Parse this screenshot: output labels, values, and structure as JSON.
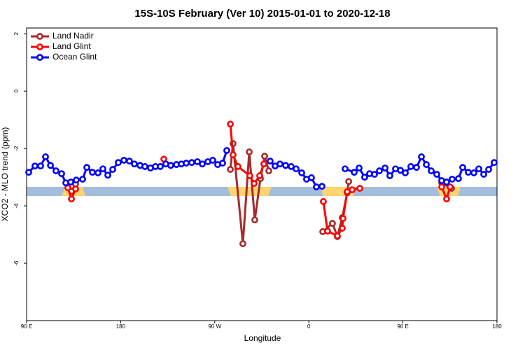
{
  "chart_data": {
    "type": "line",
    "title": "15S-10S February (Ver 10)   2015-01-01 to 2020-12-18",
    "xlabel": "Longitude",
    "ylabel": "XCO2 - MLO trend (ppm)",
    "xlim": [
      90,
      540
    ],
    "ylim": [
      -8,
      2.2
    ],
    "xticks": [
      {
        "value": 90,
        "label": "90 E"
      },
      180,
      {
        "value": 270,
        "label": "90 W"
      },
      {
        "value": 360,
        "label": "0"
      },
      {
        "value": 450,
        "label": "90 E"
      },
      {
        "value": 540,
        "label": "180"
      }
    ],
    "yticks": [
      -6,
      -4,
      -2,
      0,
      2
    ],
    "legend": "top-left",
    "series": [
      {
        "name": "Land Nadir",
        "color": "#a52a2a",
        "x": [
          129.5,
          132.9,
          136.9,
          null,
          284.9,
          287.5,
          296.9,
          303.0,
          308.3,
          313.7,
          317.7,
          321.7,
          null,
          373.3,
          382.6,
          387.3,
          392.0,
          396.7,
          398.1,
          null,
          487.1,
          496.5
        ],
        "values": [
          -3.22,
          -3.49,
          -3.24,
          null,
          -2.73,
          -1.83,
          -5.32,
          -2.12,
          -4.49,
          -3.05,
          -2.27,
          -2.78,
          null,
          -4.9,
          -4.61,
          -5.07,
          -4.41,
          -3.54,
          -3.15,
          null,
          -3.2,
          -3.39
        ]
      },
      {
        "name": "Land Glint",
        "color": "#ff0000",
        "x": [
          129.5,
          132.9,
          136.9,
          null,
          221.3,
          null,
          284.9,
          287.5,
          292.2,
          303.6,
          307.6,
          313.0,
          317.0,
          null,
          373.9,
          377.9,
          387.3,
          392.0,
          392.7,
          396.7,
          401.4,
          408.8,
          null,
          487.1,
          491.8,
          495.1
        ],
        "values": [
          -3.37,
          -3.76,
          -3.41,
          null,
          -2.37,
          null,
          -1.15,
          -2.22,
          -2.63,
          -2.95,
          -3.22,
          -2.95,
          -2.54,
          null,
          -3.85,
          -4.88,
          -5.05,
          -4.78,
          -4.44,
          -3.51,
          -3.44,
          -3.39,
          null,
          -3.34,
          -3.76,
          -3.34
        ]
      },
      {
        "name": "Ocean Glint",
        "color": "#0000ff",
        "x": [
          92.0,
          98.0,
          103.4,
          108.1,
          112.8,
          118.1,
          123.5,
          127.5,
          132.2,
          137.5,
          143.6,
          147.6,
          152.9,
          158.3,
          163.0,
          167.7,
          172.4,
          177.7,
          183.1,
          188.4,
          193.1,
          198.5,
          203.2,
          208.5,
          213.2,
          217.9,
          223.2,
          227.9,
          233.3,
          238.0,
          242.7,
          248.0,
          253.4,
          258.1,
          263.4,
          268.1,
          272.8,
          277.5,
          281.5,
          null,
          323.0,
          327.7,
          332.4,
          337.8,
          343.1,
          347.8,
          353.2,
          357.8,
          362.5,
          367.2,
          372.6,
          null,
          394.7,
          403.4,
          408.1,
          413.4,
          418.1,
          422.8,
          427.5,
          432.9,
          437.5,
          442.9,
          447.6,
          452.3,
          457.6,
          463.0,
          467.7,
          472.4,
          477.1,
          482.4,
          487.1,
          491.8,
          497.1,
          503.1,
          507.2,
          512.5,
          517.9,
          522.6,
          527.3,
          532.0,
          537.3
        ],
        "values": [
          -2.83,
          -2.61,
          -2.61,
          -2.29,
          -2.59,
          -2.78,
          -2.88,
          -3.2,
          -3.17,
          -3.1,
          -3.07,
          -2.66,
          -2.83,
          -2.85,
          -2.71,
          -2.93,
          -2.73,
          -2.49,
          -2.41,
          -2.44,
          -2.54,
          -2.59,
          -2.63,
          -2.68,
          -2.63,
          -2.63,
          -2.54,
          -2.59,
          -2.56,
          -2.54,
          -2.51,
          -2.49,
          -2.46,
          -2.54,
          -2.46,
          -2.41,
          -2.56,
          -2.51,
          -2.07,
          null,
          -2.44,
          -2.61,
          -2.54,
          -2.59,
          -2.63,
          -2.71,
          -2.85,
          -3.07,
          -3.02,
          -3.34,
          -3.32,
          null,
          -2.71,
          -2.83,
          -2.68,
          -3.0,
          -2.88,
          -2.9,
          -2.78,
          -2.68,
          -2.95,
          -2.71,
          -2.76,
          -2.85,
          -2.63,
          -2.66,
          -2.29,
          -2.56,
          -2.78,
          -2.9,
          -3.12,
          -3.17,
          -3.07,
          -3.05,
          -2.66,
          -2.83,
          -2.85,
          -2.71,
          -2.9,
          -2.73,
          -2.49
        ]
      }
    ]
  }
}
